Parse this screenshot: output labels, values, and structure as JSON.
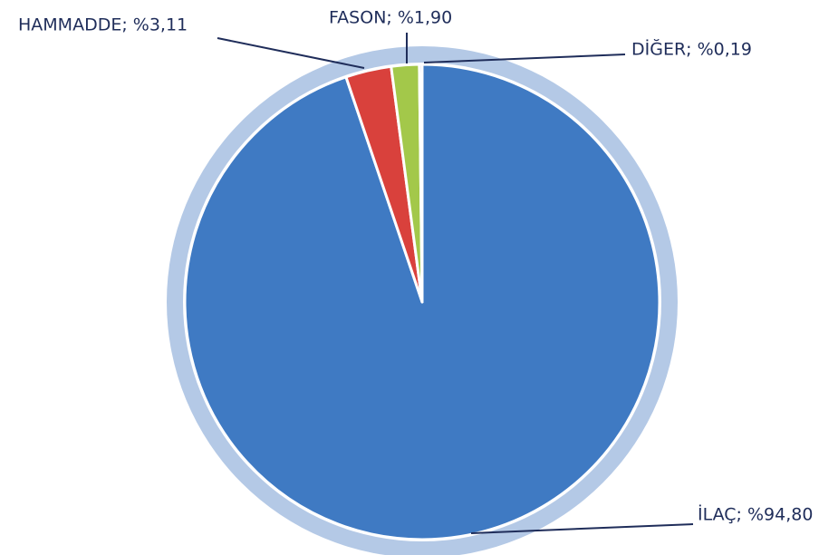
{
  "chart_data": {
    "type": "pie",
    "values": [
      94.8,
      3.11,
      1.9,
      0.19
    ],
    "value_labels": [
      "İLAÇ; %94,80",
      "HAMMADDE; %3,11",
      "FASON; %1,90",
      "DİĞER; %0,19"
    ],
    "colors": [
      "#3f7ac3",
      "#d9413c",
      "#a3c84a",
      "#7f63a6"
    ],
    "start_angle": 0,
    "direction": "clockwise"
  }
}
